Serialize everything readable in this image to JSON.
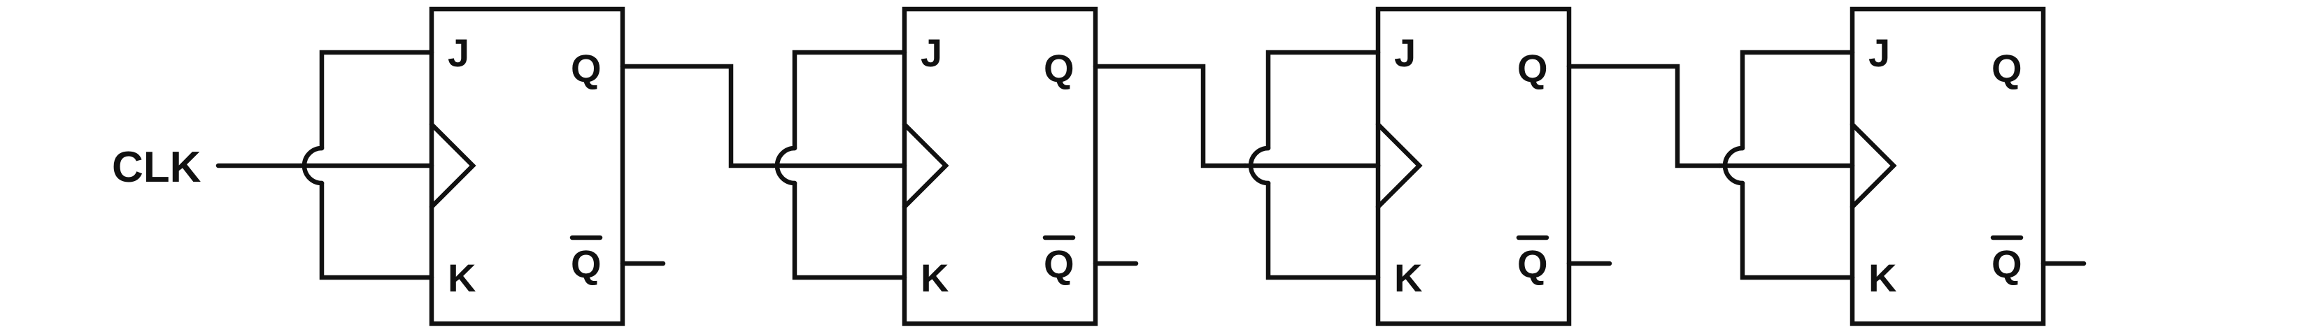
{
  "clock_label": "CLK",
  "flip_flops": [
    {
      "j": "J",
      "k": "K",
      "q": "Q",
      "q_bar": "Q"
    },
    {
      "j": "J",
      "k": "K",
      "q": "Q",
      "q_bar": "Q"
    },
    {
      "j": "J",
      "k": "K",
      "q": "Q",
      "q_bar": "Q"
    },
    {
      "j": "J",
      "k": "K",
      "q": "Q",
      "q_bar": "Q"
    }
  ]
}
